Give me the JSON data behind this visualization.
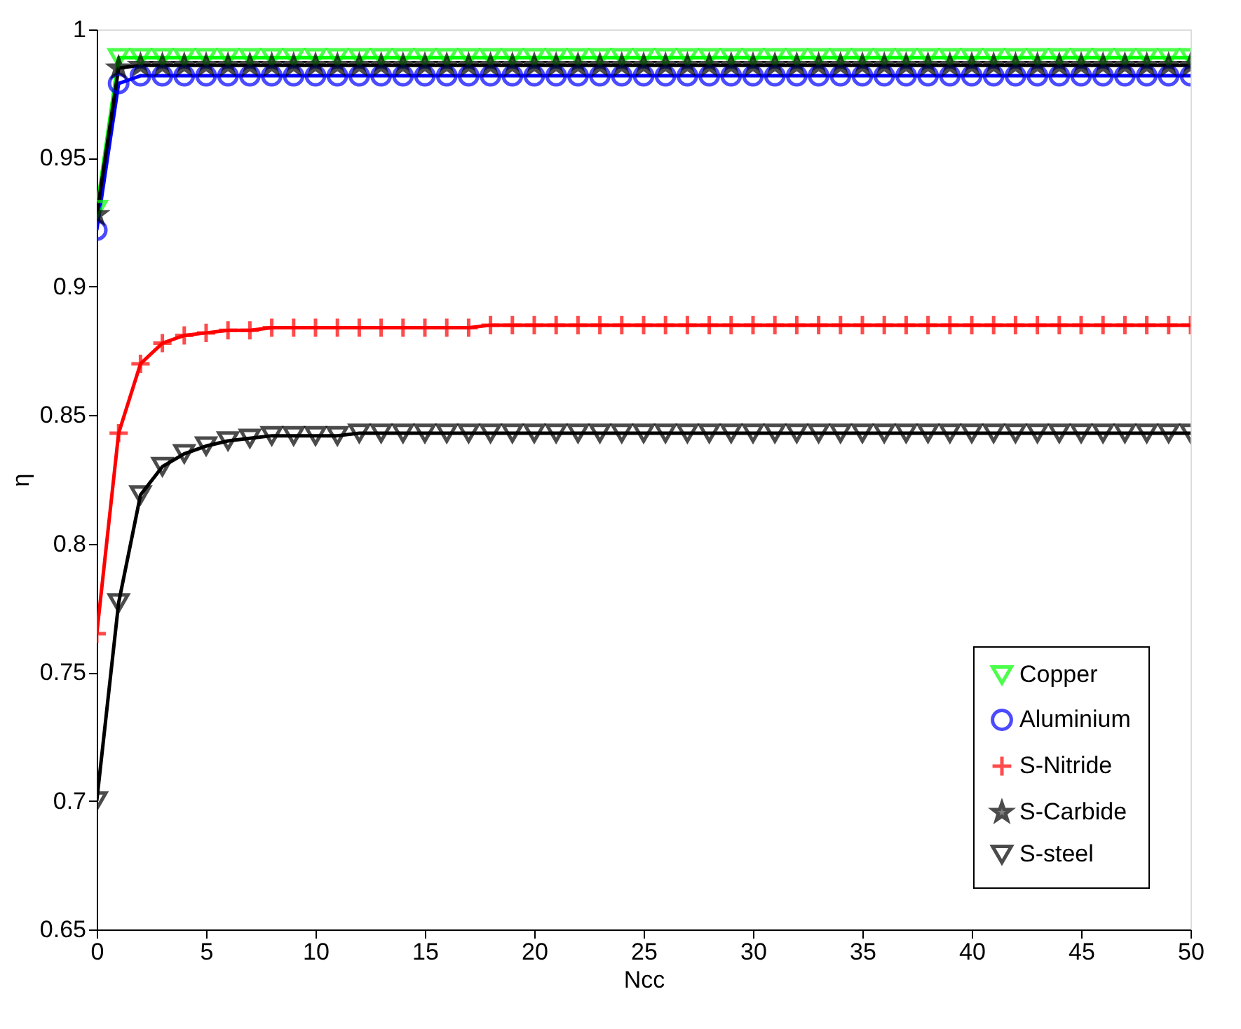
{
  "chart_data": {
    "type": "line",
    "xlabel": "Ncc",
    "ylabel": "η",
    "x": [
      0,
      1,
      2,
      3,
      4,
      5,
      6,
      7,
      8,
      9,
      10,
      11,
      12,
      13,
      14,
      15,
      16,
      17,
      18,
      19,
      20,
      21,
      22,
      23,
      24,
      25,
      26,
      27,
      28,
      29,
      30,
      31,
      32,
      33,
      34,
      35,
      36,
      37,
      38,
      39,
      40,
      41,
      42,
      43,
      44,
      45,
      46,
      47,
      48,
      49,
      50
    ],
    "xlim": [
      0,
      50
    ],
    "xticks": [
      0,
      5,
      10,
      15,
      20,
      25,
      30,
      35,
      40,
      45,
      50
    ],
    "ylim": [
      0.65,
      1
    ],
    "yticks": [
      0.65,
      0.7,
      0.75,
      0.8,
      0.85,
      0.9,
      0.95,
      1
    ],
    "grid": false,
    "legend": "bottom right",
    "series": [
      {
        "name": "Copper",
        "color": "#00ff00",
        "marker": "triangle",
        "values": [
          0.93,
          0.989,
          0.989,
          0.989,
          0.989,
          0.989,
          0.989,
          0.989,
          0.989,
          0.989,
          0.989,
          0.989,
          0.989,
          0.989,
          0.989,
          0.989,
          0.989,
          0.989,
          0.989,
          0.989,
          0.989,
          0.989,
          0.989,
          0.989,
          0.989,
          0.989,
          0.989,
          0.989,
          0.989,
          0.989,
          0.989,
          0.989,
          0.989,
          0.989,
          0.989,
          0.989,
          0.989,
          0.989,
          0.989,
          0.989,
          0.989,
          0.989,
          0.989,
          0.989,
          0.989,
          0.989,
          0.989,
          0.989,
          0.989,
          0.989,
          0.989
        ]
      },
      {
        "name": "Aluminium",
        "color": "#0000ff",
        "marker": "circle",
        "values": [
          0.922,
          0.979,
          0.982,
          0.982,
          0.982,
          0.982,
          0.982,
          0.982,
          0.982,
          0.982,
          0.982,
          0.982,
          0.982,
          0.982,
          0.982,
          0.982,
          0.982,
          0.982,
          0.982,
          0.982,
          0.982,
          0.982,
          0.982,
          0.982,
          0.982,
          0.982,
          0.982,
          0.982,
          0.982,
          0.982,
          0.982,
          0.982,
          0.982,
          0.982,
          0.982,
          0.982,
          0.982,
          0.982,
          0.982,
          0.982,
          0.982,
          0.982,
          0.982,
          0.982,
          0.982,
          0.982,
          0.982,
          0.982,
          0.982,
          0.982,
          0.982
        ]
      },
      {
        "name": "S-Nitride",
        "color": "#ff0000",
        "marker": "cross",
        "values": [
          0.765,
          0.843,
          0.87,
          0.878,
          0.881,
          0.882,
          0.883,
          0.883,
          0.884,
          0.884,
          0.884,
          0.884,
          0.884,
          0.884,
          0.884,
          0.884,
          0.884,
          0.884,
          0.885,
          0.885,
          0.885,
          0.885,
          0.885,
          0.885,
          0.885,
          0.885,
          0.885,
          0.885,
          0.885,
          0.885,
          0.885,
          0.885,
          0.885,
          0.885,
          0.885,
          0.885,
          0.885,
          0.885,
          0.885,
          0.885,
          0.885,
          0.885,
          0.885,
          0.885,
          0.885,
          0.885,
          0.885,
          0.885,
          0.885,
          0.885,
          0.885
        ]
      },
      {
        "name": "S-Carbide",
        "color": "#000000",
        "marker": "star",
        "values": [
          0.928,
          0.985,
          0.986,
          0.986,
          0.986,
          0.986,
          0.986,
          0.986,
          0.986,
          0.986,
          0.986,
          0.986,
          0.986,
          0.986,
          0.986,
          0.986,
          0.986,
          0.986,
          0.986,
          0.986,
          0.986,
          0.986,
          0.986,
          0.986,
          0.986,
          0.986,
          0.986,
          0.986,
          0.986,
          0.986,
          0.986,
          0.986,
          0.986,
          0.986,
          0.986,
          0.986,
          0.986,
          0.986,
          0.986,
          0.986,
          0.986,
          0.986,
          0.986,
          0.986,
          0.986,
          0.986,
          0.986,
          0.986,
          0.986,
          0.986,
          0.986
        ]
      },
      {
        "name": "S-steel",
        "color": "#000000",
        "marker": "triangle",
        "values": [
          0.7,
          0.777,
          0.819,
          0.83,
          0.835,
          0.838,
          0.84,
          0.841,
          0.842,
          0.842,
          0.842,
          0.842,
          0.843,
          0.843,
          0.843,
          0.843,
          0.843,
          0.843,
          0.843,
          0.843,
          0.843,
          0.843,
          0.843,
          0.843,
          0.843,
          0.843,
          0.843,
          0.843,
          0.843,
          0.843,
          0.843,
          0.843,
          0.843,
          0.843,
          0.843,
          0.843,
          0.843,
          0.843,
          0.843,
          0.843,
          0.843,
          0.843,
          0.843,
          0.843,
          0.843,
          0.843,
          0.843,
          0.843,
          0.843,
          0.843,
          0.843
        ]
      }
    ]
  }
}
